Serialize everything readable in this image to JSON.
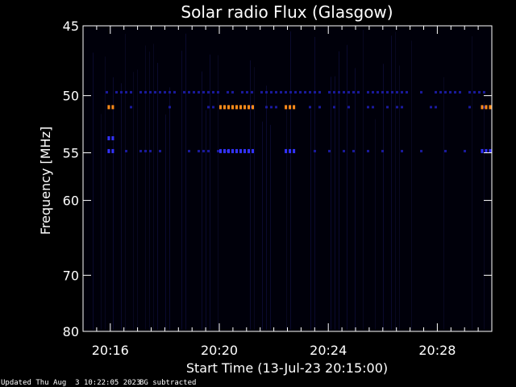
{
  "chart_data": {
    "type": "heatmap",
    "title": "Solar radio Flux (Glasgow)",
    "xlabel": "Start Time (13-Jul-23 20:15:00)",
    "ylabel_prefix": "Frequency ",
    "ylabel_unit": "[MHz]",
    "y_scale": "log",
    "ylim": [
      80,
      45
    ],
    "y_ticks": [
      45,
      50,
      55,
      60,
      70,
      80
    ],
    "x_ticks": [
      {
        "minutes": 1,
        "label": "20:16"
      },
      {
        "minutes": 5,
        "label": "20:20"
      },
      {
        "minutes": 9,
        "label": "20:24"
      },
      {
        "minutes": 13,
        "label": "20:28"
      }
    ],
    "xlim_minutes": [
      0,
      15
    ],
    "colors": {
      "background": "#000000",
      "low": "#1a1a9e",
      "mid": "#3333ff",
      "high": "#ff8c1a",
      "axes": "#ffffff"
    },
    "persistent_bands_mhz": [
      49.7,
      50.9,
      54.8
    ],
    "emission_bursts": [
      {
        "t_start": 0.9,
        "t_end": 1.1,
        "f_mhz": 50.9,
        "level": "high"
      },
      {
        "t_start": 5.0,
        "t_end": 6.2,
        "f_mhz": 50.9,
        "level": "high"
      },
      {
        "t_start": 7.4,
        "t_end": 7.8,
        "f_mhz": 50.9,
        "level": "high"
      },
      {
        "t_start": 14.6,
        "t_end": 15.0,
        "f_mhz": 50.9,
        "level": "high"
      },
      {
        "t_start": 0.9,
        "t_end": 1.1,
        "f_mhz": 53.6,
        "level": "mid"
      },
      {
        "t_start": 0.9,
        "t_end": 1.1,
        "f_mhz": 54.8,
        "level": "mid"
      },
      {
        "t_start": 5.0,
        "t_end": 6.2,
        "f_mhz": 54.8,
        "level": "mid"
      },
      {
        "t_start": 7.4,
        "t_end": 7.8,
        "f_mhz": 54.8,
        "level": "mid"
      },
      {
        "t_start": 14.6,
        "t_end": 15.0,
        "f_mhz": 54.8,
        "level": "mid"
      }
    ]
  },
  "footer": {
    "updated": "Updated Thu Aug  3 10:22:05 2023",
    "note": "BG subtracted"
  }
}
